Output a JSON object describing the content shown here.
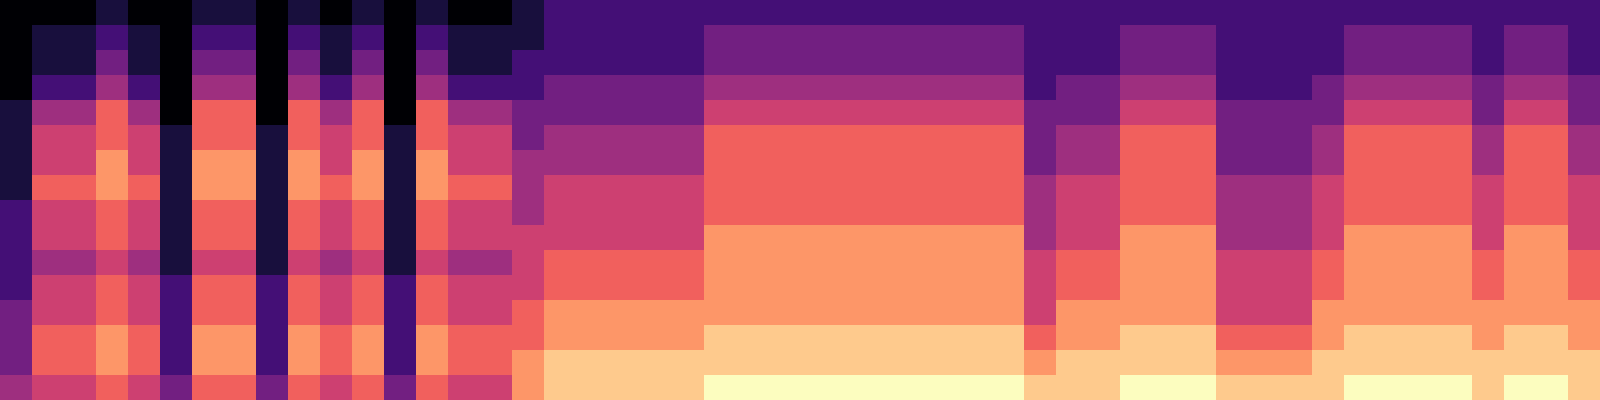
{
  "chart_data": {
    "type": "heatmap",
    "color": "magma",
    "zlim": [
      0,
      9
    ],
    "tick_labels": false,
    "cells": [
      [
        0,
        0,
        0,
        1,
        0,
        0,
        1,
        1,
        0,
        1,
        0,
        1,
        0,
        1,
        0,
        0,
        1,
        2,
        2,
        2,
        2,
        2,
        2,
        2,
        2,
        2,
        2,
        2,
        2,
        2,
        2,
        2,
        2,
        2,
        2,
        2,
        2,
        2,
        2,
        2,
        2,
        2,
        2,
        2,
        2,
        2,
        2,
        2,
        2,
        2
      ],
      [
        0,
        1,
        1,
        2,
        1,
        0,
        2,
        2,
        0,
        2,
        1,
        2,
        0,
        2,
        1,
        1,
        1,
        2,
        2,
        2,
        2,
        2,
        3,
        3,
        3,
        3,
        3,
        3,
        3,
        3,
        3,
        3,
        2,
        2,
        2,
        3,
        3,
        3,
        2,
        2,
        2,
        2,
        3,
        3,
        3,
        3,
        2,
        3,
        3,
        2
      ],
      [
        0,
        1,
        1,
        3,
        1,
        0,
        3,
        3,
        0,
        3,
        1,
        3,
        0,
        3,
        1,
        1,
        2,
        2,
        2,
        2,
        2,
        2,
        3,
        3,
        3,
        3,
        3,
        3,
        3,
        3,
        3,
        3,
        2,
        2,
        2,
        3,
        3,
        3,
        2,
        2,
        2,
        2,
        3,
        3,
        3,
        3,
        2,
        3,
        3,
        2
      ],
      [
        0,
        2,
        2,
        4,
        2,
        0,
        4,
        4,
        0,
        4,
        2,
        4,
        0,
        4,
        2,
        2,
        2,
        3,
        3,
        3,
        3,
        3,
        4,
        4,
        4,
        4,
        4,
        4,
        4,
        4,
        4,
        4,
        2,
        3,
        3,
        4,
        4,
        4,
        2,
        2,
        2,
        3,
        4,
        4,
        4,
        4,
        3,
        4,
        4,
        3
      ],
      [
        1,
        4,
        4,
        6,
        4,
        0,
        6,
        6,
        0,
        6,
        4,
        6,
        0,
        6,
        4,
        4,
        3,
        3,
        3,
        3,
        3,
        3,
        5,
        5,
        5,
        5,
        5,
        5,
        5,
        5,
        5,
        5,
        3,
        3,
        3,
        5,
        5,
        5,
        3,
        3,
        3,
        3,
        5,
        5,
        5,
        5,
        3,
        5,
        5,
        3
      ],
      [
        1,
        5,
        5,
        6,
        5,
        1,
        6,
        6,
        1,
        6,
        5,
        6,
        1,
        6,
        5,
        5,
        3,
        4,
        4,
        4,
        4,
        4,
        6,
        6,
        6,
        6,
        6,
        6,
        6,
        6,
        6,
        6,
        3,
        4,
        4,
        6,
        6,
        6,
        3,
        3,
        3,
        4,
        6,
        6,
        6,
        6,
        4,
        6,
        6,
        4
      ],
      [
        1,
        5,
        5,
        7,
        5,
        1,
        7,
        7,
        1,
        7,
        5,
        7,
        1,
        7,
        5,
        5,
        4,
        4,
        4,
        4,
        4,
        4,
        6,
        6,
        6,
        6,
        6,
        6,
        6,
        6,
        6,
        6,
        3,
        4,
        4,
        6,
        6,
        6,
        3,
        3,
        3,
        4,
        6,
        6,
        6,
        6,
        4,
        6,
        6,
        4
      ],
      [
        1,
        6,
        6,
        7,
        6,
        1,
        7,
        7,
        1,
        7,
        6,
        7,
        1,
        7,
        6,
        6,
        4,
        5,
        5,
        5,
        5,
        5,
        6,
        6,
        6,
        6,
        6,
        6,
        6,
        6,
        6,
        6,
        4,
        5,
        5,
        6,
        6,
        6,
        4,
        4,
        4,
        5,
        6,
        6,
        6,
        6,
        5,
        6,
        6,
        5
      ],
      [
        2,
        5,
        5,
        6,
        5,
        1,
        6,
        6,
        1,
        6,
        5,
        6,
        1,
        6,
        5,
        5,
        4,
        5,
        5,
        5,
        5,
        5,
        6,
        6,
        6,
        6,
        6,
        6,
        6,
        6,
        6,
        6,
        4,
        5,
        5,
        6,
        6,
        6,
        4,
        4,
        4,
        5,
        6,
        6,
        6,
        6,
        5,
        6,
        6,
        5
      ],
      [
        2,
        5,
        5,
        6,
        5,
        1,
        6,
        6,
        1,
        6,
        5,
        6,
        1,
        6,
        5,
        5,
        5,
        5,
        5,
        5,
        5,
        5,
        7,
        7,
        7,
        7,
        7,
        7,
        7,
        7,
        7,
        7,
        4,
        5,
        5,
        7,
        7,
        7,
        4,
        4,
        4,
        5,
        7,
        7,
        7,
        7,
        5,
        7,
        7,
        5
      ],
      [
        2,
        4,
        4,
        5,
        4,
        1,
        5,
        5,
        1,
        5,
        4,
        5,
        1,
        5,
        4,
        4,
        5,
        6,
        6,
        6,
        6,
        6,
        7,
        7,
        7,
        7,
        7,
        7,
        7,
        7,
        7,
        7,
        5,
        6,
        6,
        7,
        7,
        7,
        5,
        5,
        5,
        6,
        7,
        7,
        7,
        7,
        6,
        7,
        7,
        6
      ],
      [
        2,
        5,
        5,
        6,
        5,
        2,
        6,
        6,
        2,
        6,
        5,
        6,
        2,
        6,
        5,
        5,
        5,
        6,
        6,
        6,
        6,
        6,
        7,
        7,
        7,
        7,
        7,
        7,
        7,
        7,
        7,
        7,
        5,
        6,
        6,
        7,
        7,
        7,
        5,
        5,
        5,
        6,
        7,
        7,
        7,
        7,
        6,
        7,
        7,
        6
      ],
      [
        3,
        5,
        5,
        6,
        5,
        2,
        6,
        6,
        2,
        6,
        5,
        6,
        2,
        6,
        5,
        5,
        6,
        7,
        7,
        7,
        7,
        7,
        7,
        7,
        7,
        7,
        7,
        7,
        7,
        7,
        7,
        7,
        5,
        7,
        7,
        7,
        7,
        7,
        5,
        5,
        5,
        7,
        7,
        7,
        7,
        7,
        7,
        7,
        7,
        7
      ],
      [
        3,
        6,
        6,
        7,
        6,
        2,
        7,
        7,
        2,
        7,
        6,
        7,
        2,
        7,
        6,
        6,
        6,
        7,
        7,
        7,
        7,
        7,
        8,
        8,
        8,
        8,
        8,
        8,
        8,
        8,
        8,
        8,
        6,
        7,
        7,
        8,
        8,
        8,
        6,
        6,
        6,
        7,
        8,
        8,
        8,
        8,
        7,
        8,
        8,
        7
      ],
      [
        3,
        6,
        6,
        7,
        6,
        2,
        7,
        7,
        2,
        7,
        6,
        7,
        2,
        7,
        6,
        6,
        7,
        8,
        8,
        8,
        8,
        8,
        8,
        8,
        8,
        8,
        8,
        8,
        8,
        8,
        8,
        8,
        7,
        8,
        8,
        8,
        8,
        8,
        7,
        7,
        7,
        8,
        8,
        8,
        8,
        8,
        8,
        8,
        8,
        8
      ],
      [
        4,
        5,
        5,
        6,
        5,
        3,
        6,
        6,
        3,
        6,
        5,
        6,
        3,
        6,
        5,
        5,
        7,
        8,
        8,
        8,
        8,
        8,
        9,
        9,
        9,
        9,
        9,
        9,
        9,
        9,
        9,
        9,
        8,
        8,
        8,
        9,
        9,
        9,
        8,
        8,
        8,
        8,
        9,
        9,
        9,
        9,
        8,
        9,
        9,
        8
      ]
    ]
  }
}
